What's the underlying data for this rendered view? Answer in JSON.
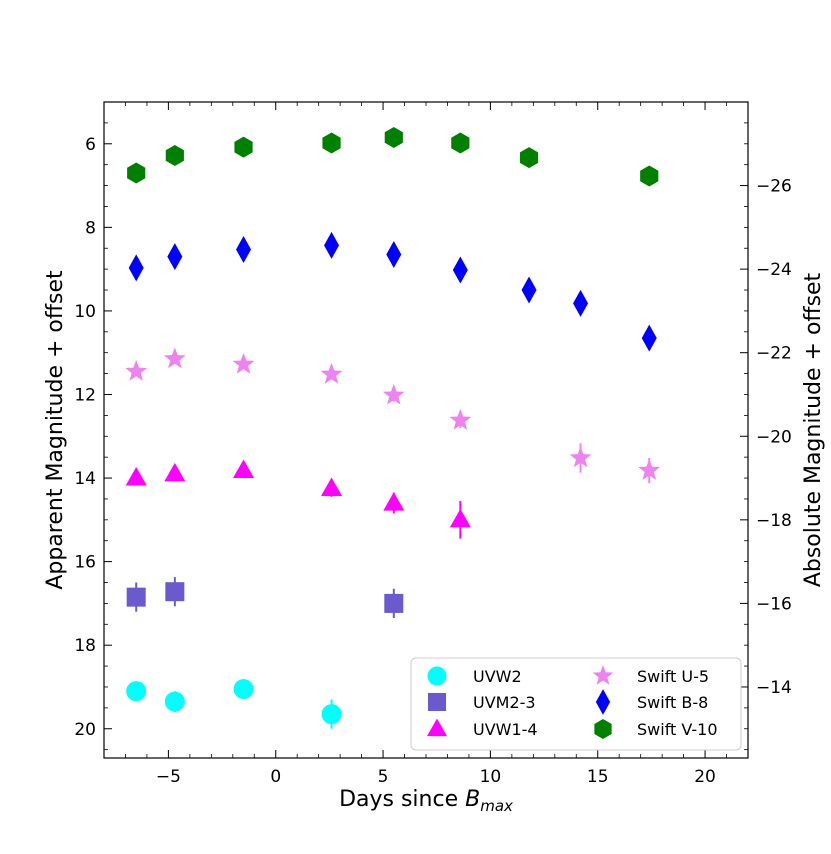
{
  "chart_data": {
    "type": "scatter",
    "title": "",
    "xlabel_main": "Days since ",
    "xlabel_italic": "B",
    "xlabel_sub": "max",
    "ylabel": "Apparent Magnitude + offset",
    "ylabel_right": "Absolute Magnitude + offset",
    "xlim": [
      -8,
      22
    ],
    "ylim": [
      20.7,
      5.0
    ],
    "ylim_right_abs": [
      -12.3,
      -28.0
    ],
    "xticks": [
      -5,
      0,
      5,
      10,
      15,
      20
    ],
    "xtick_labels": [
      "−5",
      "0",
      "5",
      "10",
      "15",
      "20"
    ],
    "yticks": [
      6,
      8,
      10,
      12,
      14,
      16,
      18,
      20
    ],
    "ytick_labels": [
      "6",
      "8",
      "10",
      "12",
      "14",
      "16",
      "18",
      "20"
    ],
    "yticks_right": [
      -26,
      -24,
      -22,
      -20,
      -18,
      -16,
      -14
    ],
    "ytick_right_labels": [
      "−26",
      "−24",
      "−22",
      "−20",
      "−18",
      "−16",
      "−14"
    ],
    "legend_position": "lower-right",
    "series": [
      {
        "name": "UVW2",
        "marker": "circle",
        "color": "#00ffff",
        "x": [
          -6.5,
          -4.7,
          -1.5,
          2.6
        ],
        "y": [
          19.1,
          19.35,
          19.05,
          19.65
        ],
        "err": [
          0.15,
          0.25,
          0.1,
          0.35
        ]
      },
      {
        "name": "UVM2-3",
        "marker": "square",
        "color": "#6a5acd",
        "x": [
          -6.5,
          -4.7,
          5.5
        ],
        "y": [
          16.85,
          16.72,
          17.0
        ],
        "err": [
          0.35,
          0.35,
          0.35
        ]
      },
      {
        "name": "UVW1-4",
        "marker": "triangle",
        "color": "#ff00ff",
        "x": [
          -6.5,
          -4.7,
          -1.5,
          2.6,
          5.5,
          8.6
        ],
        "y": [
          14.0,
          13.9,
          13.82,
          14.25,
          14.6,
          15.0
        ],
        "err": [
          0.15,
          0.15,
          0.12,
          0.2,
          0.25,
          0.45
        ]
      },
      {
        "name": "Swift U-5",
        "marker": "star",
        "color": "#ee82ee",
        "x": [
          -6.5,
          -4.7,
          -1.5,
          2.6,
          5.5,
          8.6,
          14.2,
          17.4
        ],
        "y": [
          11.45,
          11.15,
          11.28,
          11.52,
          12.02,
          12.62,
          13.52,
          13.82
        ],
        "err": [
          0.08,
          0.08,
          0.08,
          0.12,
          0.15,
          0.18,
          0.35,
          0.3
        ]
      },
      {
        "name": "Swift B-8",
        "marker": "diamond",
        "color": "#0000ff",
        "x": [
          -6.5,
          -4.7,
          -1.5,
          2.6,
          5.5,
          8.6,
          11.8,
          14.2,
          17.4
        ],
        "y": [
          8.97,
          8.7,
          8.53,
          8.43,
          8.65,
          9.02,
          9.5,
          9.82,
          10.65
        ],
        "err": [
          0.05,
          0.05,
          0.05,
          0.05,
          0.05,
          0.05,
          0.05,
          0.05,
          0.08
        ]
      },
      {
        "name": "Swift V-10",
        "marker": "hexagon",
        "color": "#008000",
        "x": [
          -6.5,
          -4.7,
          -1.5,
          2.6,
          5.5,
          8.6,
          11.8,
          17.4
        ],
        "y": [
          6.7,
          6.28,
          6.08,
          5.98,
          5.85,
          5.98,
          6.33,
          6.77
        ],
        "err": [
          0.03,
          0.03,
          0.03,
          0.03,
          0.03,
          0.03,
          0.03,
          0.03
        ]
      }
    ]
  }
}
